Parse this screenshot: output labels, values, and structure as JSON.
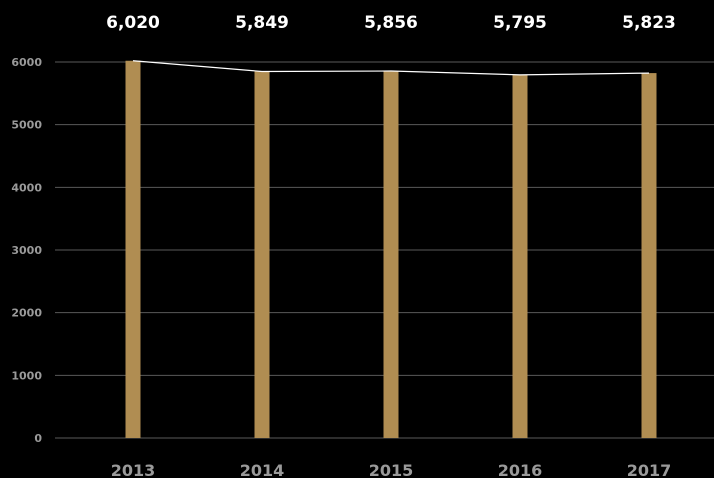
{
  "chart_data": {
    "type": "bar",
    "categories": [
      "2013",
      "2014",
      "2015",
      "2016",
      "2017"
    ],
    "values": [
      6020,
      5849,
      5856,
      5795,
      5823
    ],
    "data_labels": [
      "6,020",
      "5,849",
      "5,856",
      "5,795",
      "5,823"
    ],
    "overlay_line": true,
    "title": "",
    "xlabel": "",
    "ylabel": "",
    "ylim": [
      0,
      6000
    ],
    "yticks": [
      "0",
      "1000",
      "2000",
      "3000",
      "4000",
      "5000",
      "6000"
    ],
    "grid": true,
    "legend": "none",
    "colors": {
      "background": "#000000",
      "bar": "#b08d52",
      "line": "#ffffff",
      "grid": "#5a5a5a",
      "axis_text": "#9a9a9a",
      "data_label": "#ffffff"
    }
  }
}
